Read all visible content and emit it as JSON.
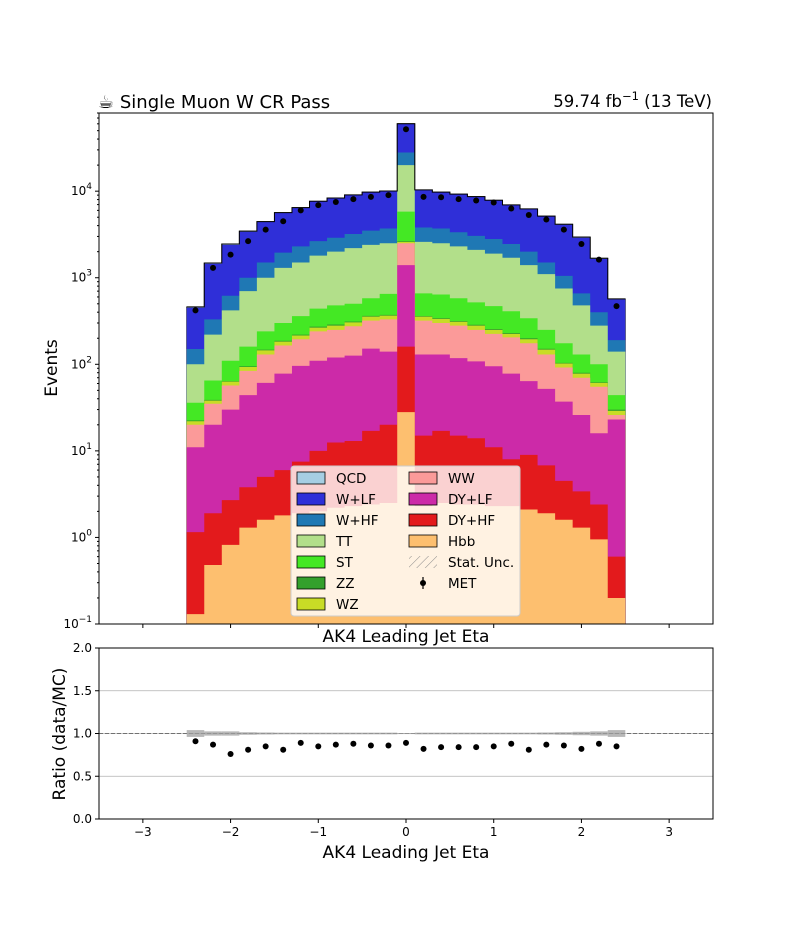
{
  "header": {
    "title": "☕ Single Muon W CR Pass",
    "lumi_prefix": "59.74 fb",
    "lumi_sup": "−1",
    "lumi_suffix": " (13 TeV)"
  },
  "colors": {
    "QCD": "#a6cee3",
    "W+LF": "#2f2fd8",
    "W+HF": "#1f78b4",
    "TT": "#b2df8a",
    "ST": "#44e824",
    "ZZ": "#33a02c",
    "WZ": "#c8dc26",
    "WW": "#fb9a99",
    "DY+LF": "#cc2aa8",
    "DY+HF": "#e31a1c",
    "Hbb": "#fdbf6f"
  },
  "chart_data": [
    {
      "type": "area",
      "subtype": "stacked-step-histogram-log",
      "xlabel": "AK4 Leading Jet Eta",
      "ylabel": "Events",
      "xlim": [
        -3.5,
        3.5
      ],
      "ylim": [
        0.1,
        80000
      ],
      "log_y": true,
      "y_ticks": [
        0.1,
        1,
        10,
        100,
        1000,
        10000
      ],
      "y_tick_labels": [
        [
          "10",
          "−1"
        ],
        [
          "10",
          "0"
        ],
        [
          "10",
          "1"
        ],
        [
          "10",
          "2"
        ],
        [
          "10",
          "3"
        ],
        [
          "10",
          "4"
        ]
      ],
      "legend_placement": "lower-center",
      "legend_entries": [
        "QCD",
        "WW",
        "W+LF",
        "DY+LF",
        "W+HF",
        "DY+HF",
        "TT",
        "Hbb",
        "ST",
        "Stat. Unc.",
        "ZZ",
        "MET",
        "WZ"
      ],
      "bin_edges": [
        -2.5,
        -2.3,
        -2.1,
        -1.9,
        -1.7,
        -1.5,
        -1.3,
        -1.1,
        -0.9,
        -0.7,
        -0.5,
        -0.3,
        -0.1,
        0.1,
        0.3,
        0.5,
        0.7,
        0.9,
        1.1,
        1.3,
        1.5,
        1.7,
        1.9,
        2.1,
        2.3,
        2.5
      ],
      "stack_order_bottom_to_top": [
        "Hbb",
        "DY+HF",
        "DY+LF",
        "WW",
        "WZ",
        "ZZ",
        "ST",
        "TT",
        "W+HF",
        "W+LF",
        "QCD"
      ],
      "cumulative_tops": {
        "Hbb": [
          0.13,
          0.48,
          0.82,
          1.3,
          1.6,
          1.8,
          1.9,
          2.0,
          2.2,
          2.3,
          2.4,
          2.5,
          28,
          2.3,
          2.5,
          2.4,
          2.4,
          2.3,
          2.3,
          2.1,
          1.9,
          1.6,
          1.3,
          0.95,
          0.2
        ],
        "DY+HF": [
          1.15,
          1.9,
          2.7,
          3.8,
          5.0,
          6.0,
          7.5,
          10,
          12.5,
          13,
          17,
          20,
          160,
          15,
          17,
          15,
          14,
          11,
          8,
          9,
          6.8,
          4.5,
          3.4,
          2.4,
          0.6
        ],
        "DY+LF": [
          11,
          20,
          30,
          44,
          61,
          78,
          96,
          110,
          120,
          126,
          152,
          140,
          1400,
          130,
          130,
          118,
          108,
          95,
          78,
          64,
          52,
          37,
          26,
          16,
          23
        ],
        "WW": [
          20,
          35,
          57,
          84,
          130,
          165,
          195,
          240,
          250,
          275,
          320,
          330,
          2500,
          320,
          300,
          280,
          250,
          225,
          205,
          175,
          130,
          92,
          70,
          55,
          26
        ],
        "WZ": [
          22,
          38,
          63,
          93,
          145,
          183,
          215,
          265,
          280,
          305,
          355,
          365,
          2600,
          355,
          335,
          310,
          280,
          250,
          225,
          195,
          148,
          102,
          78,
          61,
          29
        ],
        "ZZ": [
          22.5,
          38.8,
          64,
          95,
          148,
          187,
          220,
          272,
          288,
          312,
          363,
          373,
          2650,
          362,
          342,
          316,
          286,
          256,
          230,
          200,
          151,
          104,
          80,
          62,
          30
        ],
        "ST": [
          36,
          65,
          110,
          160,
          240,
          300,
          360,
          440,
          480,
          500,
          580,
          650,
          5800,
          660,
          640,
          580,
          520,
          470,
          410,
          340,
          250,
          175,
          130,
          100,
          44
        ],
        "TT": [
          100,
          220,
          420,
          700,
          1000,
          1300,
          1500,
          1800,
          2000,
          2200,
          2400,
          2500,
          20000,
          2600,
          2500,
          2300,
          2100,
          1900,
          1700,
          1400,
          1100,
          750,
          480,
          280,
          140
        ],
        "W+HF": [
          150,
          330,
          620,
          1000,
          1500,
          1950,
          2300,
          2650,
          2900,
          3200,
          3500,
          3700,
          28000,
          3800,
          3700,
          3350,
          3050,
          2800,
          2450,
          2000,
          1500,
          1050,
          660,
          400,
          190
        ],
        "W+LF": [
          450,
          1450,
          2400,
          3400,
          4400,
          5600,
          6400,
          7600,
          8300,
          9000,
          9700,
          10000,
          60000,
          10300,
          9700,
          9200,
          8600,
          7800,
          6900,
          6200,
          5100,
          4100,
          2900,
          1650,
          560
        ],
        "QCD": [
          460,
          1480,
          2450,
          3450,
          4450,
          5650,
          6450,
          7650,
          8350,
          9050,
          9750,
          10050,
          60200,
          10350,
          9750,
          9250,
          8650,
          7850,
          6950,
          6250,
          5150,
          4150,
          2950,
          1680,
          570
        ]
      },
      "series": [
        {
          "name": "MET",
          "type": "scatter",
          "x": [
            -2.4,
            -2.2,
            -2.0,
            -1.8,
            -1.6,
            -1.4,
            -1.2,
            -1.0,
            -0.8,
            -0.6,
            -0.4,
            -0.2,
            0.0,
            0.2,
            0.4,
            0.6,
            0.8,
            1.0,
            1.2,
            1.4,
            1.6,
            1.8,
            2.0,
            2.2,
            2.4
          ],
          "y": [
            420,
            1300,
            1850,
            2650,
            3600,
            4500,
            6000,
            6900,
            7500,
            8100,
            8600,
            9000,
            52000,
            8600,
            8500,
            8100,
            7800,
            7400,
            6300,
            5300,
            4700,
            3600,
            2450,
            1620,
            470
          ]
        }
      ]
    },
    {
      "type": "scatter",
      "xlabel": "AK4 Leading Jet Eta",
      "ylabel": "Ratio (data/MC)",
      "xlim": [
        -3.5,
        3.5
      ],
      "ylim": [
        0.0,
        2.0
      ],
      "x_ticks": [
        -3,
        -2,
        -1,
        0,
        1,
        2,
        3
      ],
      "x_tick_labels": [
        "−3",
        "−2",
        "−1",
        "0",
        "1",
        "2",
        "3"
      ],
      "y_ticks": [
        0.0,
        0.5,
        1.0,
        1.5,
        2.0
      ],
      "y_tick_labels": [
        "0.0",
        "0.5",
        "1.0",
        "1.5",
        "2.0"
      ],
      "grid": true,
      "reference_line": 1.0,
      "series": [
        {
          "name": "Ratio",
          "x": [
            -2.4,
            -2.2,
            -2.0,
            -1.8,
            -1.6,
            -1.4,
            -1.2,
            -1.0,
            -0.8,
            -0.6,
            -0.4,
            -0.2,
            0.0,
            0.2,
            0.4,
            0.6,
            0.8,
            1.0,
            1.2,
            1.4,
            1.6,
            1.8,
            2.0,
            2.2,
            2.4
          ],
          "y": [
            0.91,
            0.87,
            0.76,
            0.81,
            0.85,
            0.81,
            0.89,
            0.85,
            0.87,
            0.88,
            0.86,
            0.86,
            0.89,
            0.82,
            0.84,
            0.84,
            0.84,
            0.85,
            0.88,
            0.81,
            0.87,
            0.86,
            0.82,
            0.88,
            0.85
          ]
        }
      ],
      "stat_unc_halfwidth": [
        0.04,
        0.025,
        0.025,
        0.015,
        0.012,
        0.01,
        0.01,
        0.01,
        0.01,
        0.01,
        0.01,
        0.01,
        0.005,
        0.01,
        0.01,
        0.01,
        0.01,
        0.01,
        0.01,
        0.01,
        0.012,
        0.015,
        0.02,
        0.025,
        0.04
      ]
    }
  ]
}
